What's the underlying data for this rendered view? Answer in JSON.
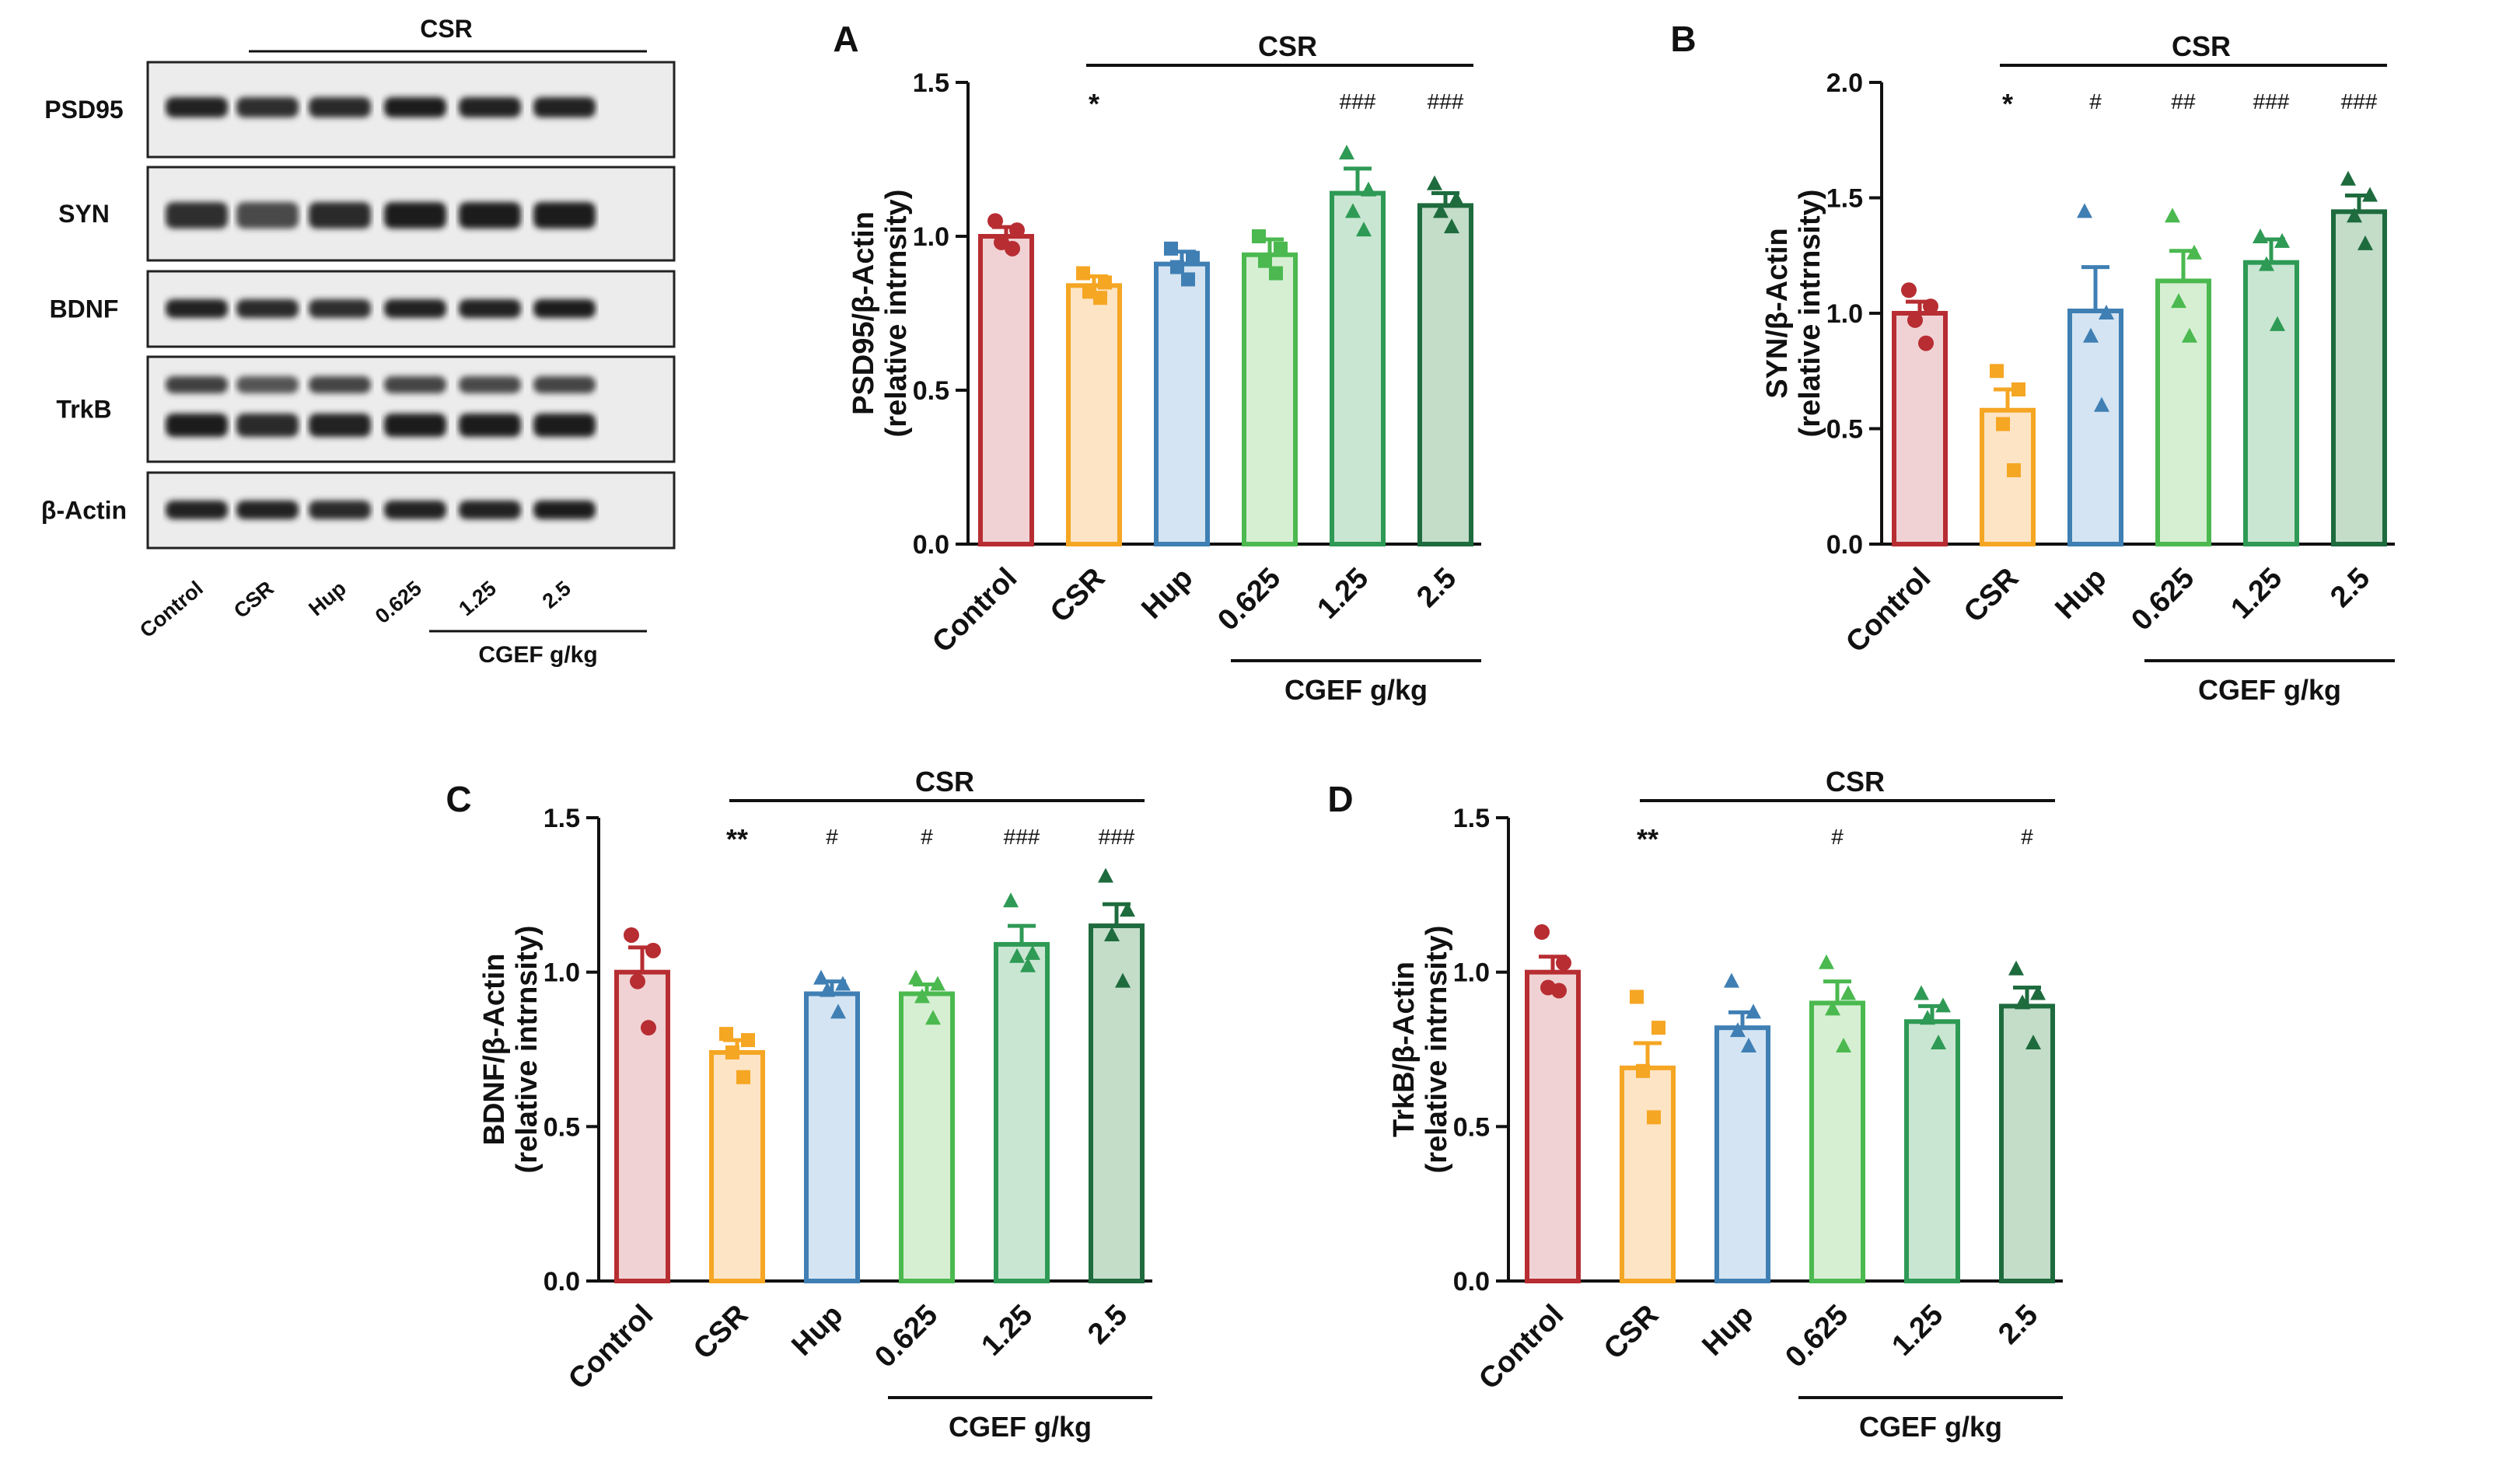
{
  "colors": {
    "groups": [
      "#b72d32",
      "#f5a623",
      "#3f7fb4",
      "#4bb94f",
      "#2e9a55",
      "#1e6b3e"
    ],
    "fills": [
      "#f0d2d4",
      "#fde4c4",
      "#d4e4f2",
      "#d6efd3",
      "#c9e6d2",
      "#c3ddc9"
    ],
    "axis": "#111111"
  },
  "western_blot": {
    "top_group_label": "CSR",
    "bottom_group_label": "CGEF g/kg",
    "lanes": [
      "Control",
      "CSR",
      "Hup",
      "0.625",
      "1.25",
      "2.5"
    ],
    "proteins": [
      "PSD95",
      "SYN",
      "BDNF",
      "TrkB",
      "β-Actin"
    ]
  },
  "chart_data": [
    {
      "panel": "A",
      "type": "bar",
      "title": "",
      "ylabel": "PSD95/β-Actin",
      "ylabel2": "(relative intrnsity)",
      "xlabel": "",
      "group_label_top": "CSR",
      "group_label_bottom": "CGEF g/kg",
      "ylim": [
        0,
        1.5
      ],
      "yticks": [
        "0.0",
        "0.5",
        "1.0",
        "1.5"
      ],
      "categories": [
        "Control",
        "CSR",
        "Hup",
        "0.625",
        "1.25",
        "2.5"
      ],
      "values": [
        1.0,
        0.84,
        0.91,
        0.94,
        1.14,
        1.1
      ],
      "errors": [
        0.03,
        0.03,
        0.04,
        0.05,
        0.08,
        0.04
      ],
      "points": [
        [
          1.05,
          1.02,
          0.98,
          0.96
        ],
        [
          0.88,
          0.85,
          0.82,
          0.8
        ],
        [
          0.96,
          0.93,
          0.9,
          0.86
        ],
        [
          1.0,
          0.96,
          0.92,
          0.88
        ],
        [
          1.27,
          1.15,
          1.08,
          1.02
        ],
        [
          1.17,
          1.12,
          1.08,
          1.03
        ]
      ],
      "markers": [
        "circle",
        "square",
        "square",
        "square",
        "triangle",
        "triangle"
      ],
      "annotations": [
        "",
        "*",
        "",
        "",
        "###",
        "###"
      ]
    },
    {
      "panel": "B",
      "type": "bar",
      "title": "",
      "ylabel": "SYN/β-Actin",
      "ylabel2": "(relative intrnsity)",
      "xlabel": "",
      "group_label_top": "CSR",
      "group_label_bottom": "CGEF g/kg",
      "ylim": [
        0,
        2.0
      ],
      "yticks": [
        "0.0",
        "0.5",
        "1.0",
        "1.5",
        "2.0"
      ],
      "categories": [
        "Control",
        "CSR",
        "Hup",
        "0.625",
        "1.25",
        "2.5"
      ],
      "values": [
        1.0,
        0.58,
        1.01,
        1.14,
        1.22,
        1.44
      ],
      "errors": [
        0.05,
        0.09,
        0.19,
        0.13,
        0.1,
        0.07
      ],
      "points": [
        [
          1.1,
          1.03,
          0.97,
          0.87
        ],
        [
          0.75,
          0.67,
          0.52,
          0.32
        ],
        [
          1.44,
          1.0,
          0.9,
          0.6
        ],
        [
          1.42,
          1.26,
          1.05,
          0.9
        ],
        [
          1.33,
          1.31,
          1.21,
          0.95
        ],
        [
          1.58,
          1.51,
          1.42,
          1.3
        ]
      ],
      "markers": [
        "circle",
        "square",
        "triangle",
        "triangle",
        "triangle",
        "triangle"
      ],
      "annotations": [
        "",
        "*",
        "#",
        "##",
        "###",
        "###"
      ]
    },
    {
      "panel": "C",
      "type": "bar",
      "title": "",
      "ylabel": "BDNF/β-Actin",
      "ylabel2": "(relative intrnsity)",
      "xlabel": "",
      "group_label_top": "CSR",
      "group_label_bottom": "CGEF g/kg",
      "ylim": [
        0,
        1.5
      ],
      "yticks": [
        "0.0",
        "0.5",
        "1.0",
        "1.5"
      ],
      "categories": [
        "Control",
        "CSR",
        "Hup",
        "0.625",
        "1.25",
        "2.5"
      ],
      "values": [
        1.0,
        0.74,
        0.93,
        0.93,
        1.09,
        1.15
      ],
      "errors": [
        0.08,
        0.04,
        0.04,
        0.03,
        0.06,
        0.07
      ],
      "points": [
        [
          1.12,
          1.07,
          0.97,
          0.82
        ],
        [
          0.8,
          0.78,
          0.74,
          0.66
        ],
        [
          0.98,
          0.96,
          0.94,
          0.87
        ],
        [
          0.98,
          0.96,
          0.92,
          0.85
        ],
        [
          1.23,
          1.06,
          1.05,
          1.02
        ],
        [
          1.31,
          1.2,
          1.12,
          0.97
        ]
      ],
      "markers": [
        "circle",
        "square",
        "triangle",
        "triangle",
        "triangle",
        "triangle"
      ],
      "annotations": [
        "",
        "**",
        "#",
        "#",
        "###",
        "###"
      ]
    },
    {
      "panel": "D",
      "type": "bar",
      "title": "",
      "ylabel": "TrkB/β-Actin",
      "ylabel2": "(relative intrnsity)",
      "xlabel": "",
      "group_label_top": "CSR",
      "group_label_bottom": "CGEF g/kg",
      "ylim": [
        0,
        1.5
      ],
      "yticks": [
        "0.0",
        "0.5",
        "1.0",
        "1.5"
      ],
      "categories": [
        "Control",
        "CSR",
        "Hup",
        "0.625",
        "1.25",
        "2.5"
      ],
      "values": [
        1.0,
        0.69,
        0.82,
        0.9,
        0.84,
        0.89
      ],
      "errors": [
        0.05,
        0.08,
        0.05,
        0.07,
        0.05,
        0.06
      ],
      "points": [
        [
          1.13,
          1.03,
          0.95,
          0.94
        ],
        [
          0.92,
          0.82,
          0.68,
          0.53
        ],
        [
          0.97,
          0.87,
          0.81,
          0.76
        ],
        [
          1.03,
          0.93,
          0.88,
          0.76
        ],
        [
          0.93,
          0.89,
          0.85,
          0.77
        ],
        [
          1.01,
          0.93,
          0.9,
          0.77
        ]
      ],
      "markers": [
        "circle",
        "square",
        "triangle",
        "triangle",
        "triangle",
        "triangle"
      ],
      "annotations": [
        "",
        "**",
        "",
        "#",
        "",
        "#"
      ]
    }
  ],
  "panel_labels": [
    "A",
    "B",
    "C",
    "D"
  ]
}
